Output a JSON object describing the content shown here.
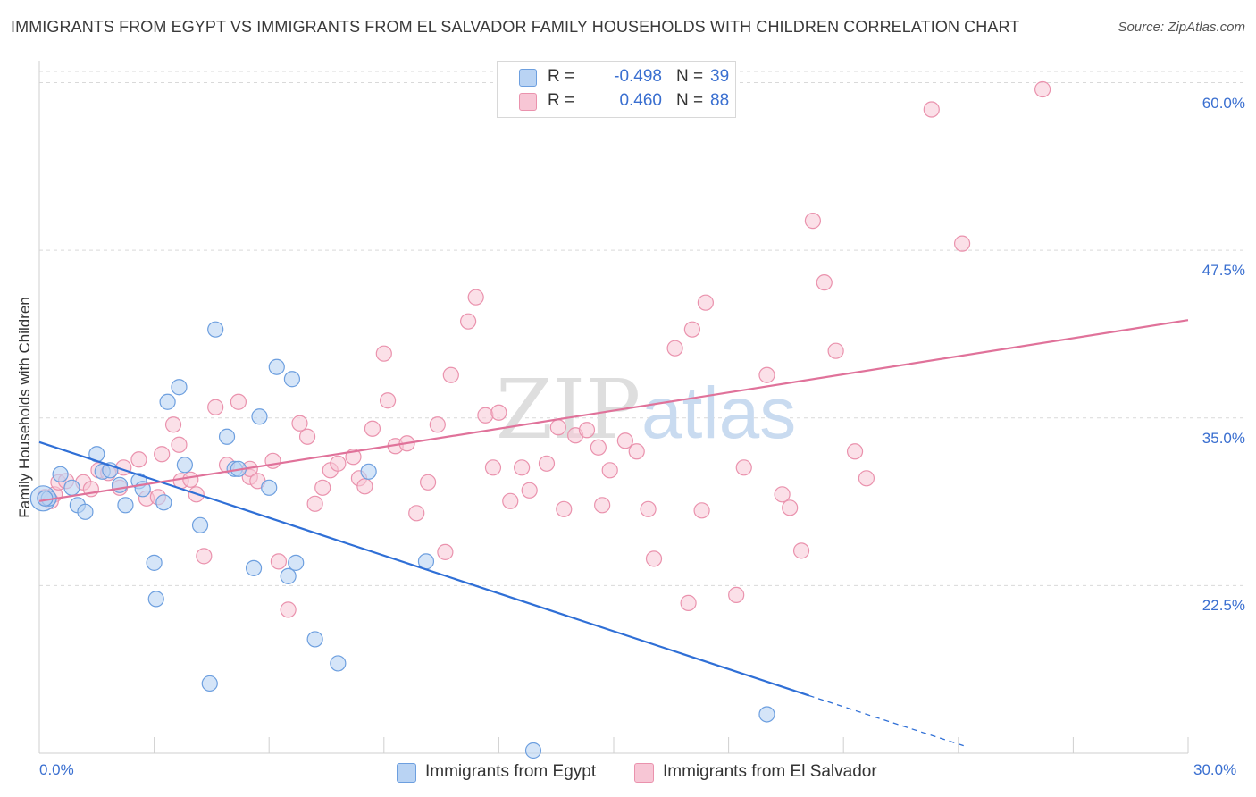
{
  "title": "IMMIGRANTS FROM EGYPT VS IMMIGRANTS FROM EL SALVADOR FAMILY HOUSEHOLDS WITH CHILDREN CORRELATION CHART",
  "source": "Source: ZipAtlas.com",
  "watermark": {
    "zip": "ZIP",
    "atlas": "atlas"
  },
  "legend": {
    "egypt": {
      "r_label": "R =",
      "r_value": "-0.498",
      "n_label": "N =",
      "n_value": "39"
    },
    "salvador": {
      "r_label": "R =",
      "r_value": "0.460",
      "n_label": "N =",
      "n_value": "88"
    }
  },
  "colors": {
    "egypt_fill": "#b9d3f3",
    "egypt_stroke": "#6d9fdf",
    "egypt_line": "#2f6fd6",
    "salvador_fill": "#f7c6d5",
    "salvador_stroke": "#ea92ad",
    "salvador_line": "#e0729a",
    "grid": "#d9d9d9",
    "tick_text": "#3a6fd0"
  },
  "chart_data": {
    "type": "scatter",
    "title": "IMMIGRANTS FROM EGYPT VS IMMIGRANTS FROM EL SALVADOR FAMILY HOUSEHOLDS WITH CHILDREN CORRELATION CHART",
    "xlabel": "",
    "ylabel": "Family Households with Children",
    "xlim": [
      0,
      30
    ],
    "ylim": [
      10,
      61.5
    ],
    "x_ticks": [
      "0.0%",
      "30.0%"
    ],
    "y_ticks": [
      {
        "value": 22.5,
        "label": "22.5%"
      },
      {
        "value": 35.0,
        "label": "35.0%"
      },
      {
        "value": 47.5,
        "label": "47.5%"
      },
      {
        "value": 60.0,
        "label": "60.0%"
      }
    ],
    "legend_position": "top-center",
    "grid": true,
    "series": [
      {
        "name": "Immigrants from Egypt",
        "R": -0.498,
        "N": 39,
        "trendline": {
          "x": [
            0,
            20.1
          ],
          "y": [
            33.2,
            14.3
          ],
          "dashed_to": {
            "x": 24.2,
            "y": 10.5
          }
        },
        "points": [
          [
            0.1,
            29.0
          ],
          [
            0.25,
            29.0
          ],
          [
            0.55,
            30.8
          ],
          [
            0.85,
            29.8
          ],
          [
            1.0,
            28.5
          ],
          [
            1.2,
            28.0
          ],
          [
            1.5,
            32.3
          ],
          [
            1.65,
            31.0
          ],
          [
            1.85,
            31.1
          ],
          [
            2.1,
            30.0
          ],
          [
            2.25,
            28.5
          ],
          [
            2.6,
            30.3
          ],
          [
            2.7,
            29.7
          ],
          [
            3.0,
            24.2
          ],
          [
            3.05,
            21.5
          ],
          [
            3.25,
            28.7
          ],
          [
            3.35,
            36.2
          ],
          [
            3.65,
            37.3
          ],
          [
            3.8,
            31.5
          ],
          [
            4.2,
            27.0
          ],
          [
            4.45,
            15.2
          ],
          [
            4.6,
            41.6
          ],
          [
            4.9,
            33.6
          ],
          [
            5.1,
            31.2
          ],
          [
            5.2,
            31.2
          ],
          [
            5.6,
            23.8
          ],
          [
            5.75,
            35.1
          ],
          [
            6.0,
            29.8
          ],
          [
            6.2,
            38.8
          ],
          [
            6.5,
            23.2
          ],
          [
            6.6,
            37.9
          ],
          [
            6.7,
            24.2
          ],
          [
            7.2,
            18.5
          ],
          [
            7.8,
            16.7
          ],
          [
            8.6,
            31.0
          ],
          [
            10.1,
            24.3
          ],
          [
            12.9,
            10.2
          ],
          [
            19.0,
            12.9
          ],
          [
            0.15,
            29.0
          ]
        ],
        "point_sizes": {
          "large": [
            [
              0.1,
              29.0
            ]
          ]
        }
      },
      {
        "name": "Immigrants from El Salvador",
        "R": 0.46,
        "N": 88,
        "trendline": {
          "x": [
            0,
            30
          ],
          "y": [
            28.8,
            42.3
          ]
        },
        "points": [
          [
            0.15,
            29.1
          ],
          [
            0.4,
            29.3
          ],
          [
            0.5,
            30.2
          ],
          [
            0.7,
            30.3
          ],
          [
            1.15,
            30.2
          ],
          [
            1.35,
            29.7
          ],
          [
            1.55,
            31.1
          ],
          [
            1.8,
            30.9
          ],
          [
            2.1,
            29.8
          ],
          [
            2.2,
            31.3
          ],
          [
            2.6,
            31.9
          ],
          [
            2.8,
            29.0
          ],
          [
            3.1,
            29.1
          ],
          [
            3.2,
            32.3
          ],
          [
            3.5,
            34.5
          ],
          [
            3.65,
            33.0
          ],
          [
            3.7,
            30.3
          ],
          [
            3.95,
            30.4
          ],
          [
            4.1,
            29.3
          ],
          [
            4.3,
            24.7
          ],
          [
            4.6,
            35.8
          ],
          [
            4.9,
            31.5
          ],
          [
            5.2,
            36.2
          ],
          [
            5.5,
            30.6
          ],
          [
            5.5,
            31.2
          ],
          [
            5.7,
            30.3
          ],
          [
            6.1,
            31.8
          ],
          [
            6.25,
            24.3
          ],
          [
            6.5,
            20.7
          ],
          [
            6.8,
            34.6
          ],
          [
            7.0,
            33.6
          ],
          [
            7.2,
            28.6
          ],
          [
            7.4,
            29.8
          ],
          [
            7.6,
            31.1
          ],
          [
            7.8,
            31.6
          ],
          [
            8.2,
            32.1
          ],
          [
            8.35,
            30.5
          ],
          [
            8.5,
            29.9
          ],
          [
            8.7,
            34.2
          ],
          [
            9.0,
            39.8
          ],
          [
            9.1,
            36.3
          ],
          [
            9.3,
            32.9
          ],
          [
            9.6,
            33.1
          ],
          [
            9.85,
            27.9
          ],
          [
            10.15,
            30.2
          ],
          [
            10.4,
            34.5
          ],
          [
            10.6,
            25.0
          ],
          [
            10.75,
            38.2
          ],
          [
            11.2,
            42.2
          ],
          [
            11.4,
            44.0
          ],
          [
            11.65,
            35.2
          ],
          [
            11.85,
            31.3
          ],
          [
            12.0,
            35.4
          ],
          [
            12.3,
            28.8
          ],
          [
            12.6,
            31.3
          ],
          [
            12.8,
            29.6
          ],
          [
            13.25,
            31.6
          ],
          [
            13.55,
            34.3
          ],
          [
            13.7,
            28.2
          ],
          [
            14.0,
            33.7
          ],
          [
            14.3,
            34.1
          ],
          [
            14.6,
            32.8
          ],
          [
            14.7,
            28.5
          ],
          [
            14.9,
            31.1
          ],
          [
            15.3,
            33.3
          ],
          [
            15.6,
            32.5
          ],
          [
            15.9,
            28.2
          ],
          [
            16.05,
            24.5
          ],
          [
            16.6,
            40.2
          ],
          [
            16.95,
            21.2
          ],
          [
            17.05,
            41.6
          ],
          [
            17.3,
            28.1
          ],
          [
            17.4,
            43.6
          ],
          [
            18.2,
            21.8
          ],
          [
            18.4,
            31.3
          ],
          [
            19.0,
            38.2
          ],
          [
            19.4,
            29.3
          ],
          [
            19.6,
            28.3
          ],
          [
            19.9,
            25.1
          ],
          [
            20.2,
            49.7
          ],
          [
            20.5,
            45.1
          ],
          [
            20.8,
            40.0
          ],
          [
            21.3,
            32.5
          ],
          [
            21.6,
            30.5
          ],
          [
            23.3,
            58.0
          ],
          [
            24.1,
            48.0
          ],
          [
            26.2,
            59.5
          ],
          [
            0.3,
            28.8
          ]
        ]
      }
    ]
  },
  "bottom_legend": {
    "egypt": "Immigrants from Egypt",
    "salvador": "Immigrants from El Salvador"
  }
}
